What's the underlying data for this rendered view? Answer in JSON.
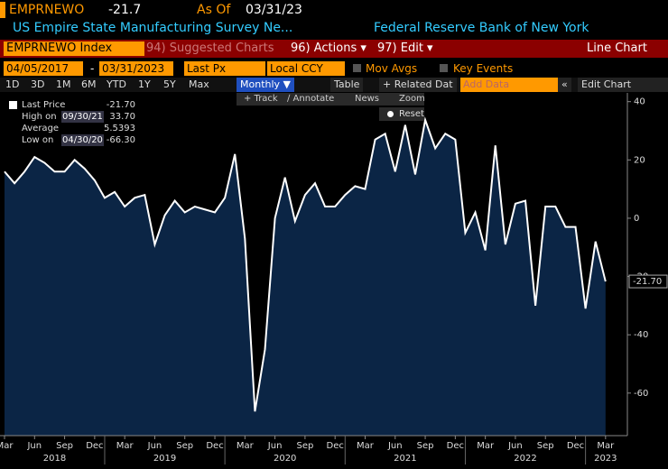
{
  "header": {
    "ticker": "EMPRNEWO",
    "last": "-21.7",
    "as_of_label": "As Of",
    "as_of": "03/31/23",
    "description": "US Empire State Manufacturing Survey Ne...",
    "source": "Federal Reserve Bank of New York"
  },
  "menu": {
    "security": "EMPRNEWO Index",
    "suggested": "94) Suggested Charts",
    "actions": "96) Actions ▾",
    "edit": "97) Edit ▾",
    "chart_type": "Line Chart"
  },
  "controls": {
    "start": "04/05/2017",
    "sep": "-",
    "end": "03/31/2023",
    "field": "Last Px",
    "currency": "Local CCY",
    "mov_avgs": "Mov Avgs",
    "key_events": "Key Events"
  },
  "toolbar": {
    "ranges": [
      "1D",
      "3D",
      "1M",
      "6M",
      "YTD",
      "1Y",
      "5Y",
      "Max"
    ],
    "period": "Monthly ▼",
    "table": "Table",
    "related": "+ Related Dat",
    "add_data": "Add Data",
    "collapse": "«",
    "edit_chart": "Edit Chart"
  },
  "annotations": {
    "track": "+ Track",
    "annotate": "∕ Annotate",
    "news": "News",
    "zoom": "Zoom",
    "reset": "Reset"
  },
  "chart_data": {
    "type": "line",
    "x": [
      "2018-03",
      "2018-04",
      "2018-05",
      "2018-06",
      "2018-07",
      "2018-08",
      "2018-09",
      "2018-10",
      "2018-11",
      "2018-12",
      "2019-01",
      "2019-02",
      "2019-03",
      "2019-04",
      "2019-05",
      "2019-06",
      "2019-07",
      "2019-08",
      "2019-09",
      "2019-10",
      "2019-11",
      "2019-12",
      "2020-01",
      "2020-02",
      "2020-03",
      "2020-04",
      "2020-05",
      "2020-06",
      "2020-07",
      "2020-08",
      "2020-09",
      "2020-10",
      "2020-11",
      "2020-12",
      "2021-01",
      "2021-02",
      "2021-03",
      "2021-04",
      "2021-05",
      "2021-06",
      "2021-07",
      "2021-08",
      "2021-09",
      "2021-10",
      "2021-11",
      "2021-12",
      "2022-01",
      "2022-02",
      "2022-03",
      "2022-04",
      "2022-05",
      "2022-06",
      "2022-07",
      "2022-08",
      "2022-09",
      "2022-10",
      "2022-11",
      "2022-12",
      "2023-01",
      "2023-02",
      "2023-03"
    ],
    "series": [
      {
        "name": "Last Price",
        "color": "#ffffff",
        "fill": "#0b2545",
        "values": [
          16,
          12,
          16,
          21,
          19,
          16,
          16,
          20,
          17,
          13,
          7,
          9,
          4,
          7,
          8,
          -9,
          1,
          6,
          2,
          4,
          3,
          2,
          7,
          22,
          -7,
          -66.3,
          -45,
          0,
          14,
          -1,
          8,
          12,
          4,
          4,
          8,
          11,
          10,
          27,
          29,
          16,
          32,
          15,
          33.7,
          24,
          29,
          27,
          -5,
          2,
          -11,
          25,
          -9,
          5,
          6,
          -30,
          4,
          4,
          -3,
          -3,
          -31,
          -8,
          -21.7
        ]
      }
    ],
    "last_label": "-21.70",
    "legend": [
      {
        "name": "Last Price",
        "value": "-21.70"
      },
      {
        "name": "High on",
        "date": "09/30/21",
        "value": "33.70"
      },
      {
        "name": "Average",
        "value": "5.5393"
      },
      {
        "name": "Low on",
        "date": "04/30/20",
        "value": "-66.30"
      }
    ],
    "xlim": [
      "2018-03",
      "2023-05"
    ],
    "xticks": [
      {
        "value": "2018-03",
        "label": "Mar"
      },
      {
        "value": "2018-06",
        "label": "Jun"
      },
      {
        "value": "2018-09",
        "label": "Sep"
      },
      {
        "value": "2018-12",
        "label": "Dec"
      },
      {
        "value": "2019-03",
        "label": "Mar"
      },
      {
        "value": "2019-06",
        "label": "Jun"
      },
      {
        "value": "2019-09",
        "label": "Sep"
      },
      {
        "value": "2019-12",
        "label": "Dec"
      },
      {
        "value": "2020-03",
        "label": "Mar"
      },
      {
        "value": "2020-06",
        "label": "Jun"
      },
      {
        "value": "2020-09",
        "label": "Sep"
      },
      {
        "value": "2020-12",
        "label": "Dec"
      },
      {
        "value": "2021-03",
        "label": "Mar"
      },
      {
        "value": "2021-06",
        "label": "Jun"
      },
      {
        "value": "2021-09",
        "label": "Sep"
      },
      {
        "value": "2021-12",
        "label": "Dec"
      },
      {
        "value": "2022-03",
        "label": "Mar"
      },
      {
        "value": "2022-06",
        "label": "Jun"
      },
      {
        "value": "2022-09",
        "label": "Sep"
      },
      {
        "value": "2022-12",
        "label": "Dec"
      },
      {
        "value": "2023-03",
        "label": "Mar"
      }
    ],
    "years": [
      2018,
      2019,
      2020,
      2021,
      2022,
      2023
    ],
    "ylim": [
      -74.6,
      43
    ],
    "yticks": [
      40,
      20,
      0,
      -20,
      -40,
      -60
    ]
  }
}
